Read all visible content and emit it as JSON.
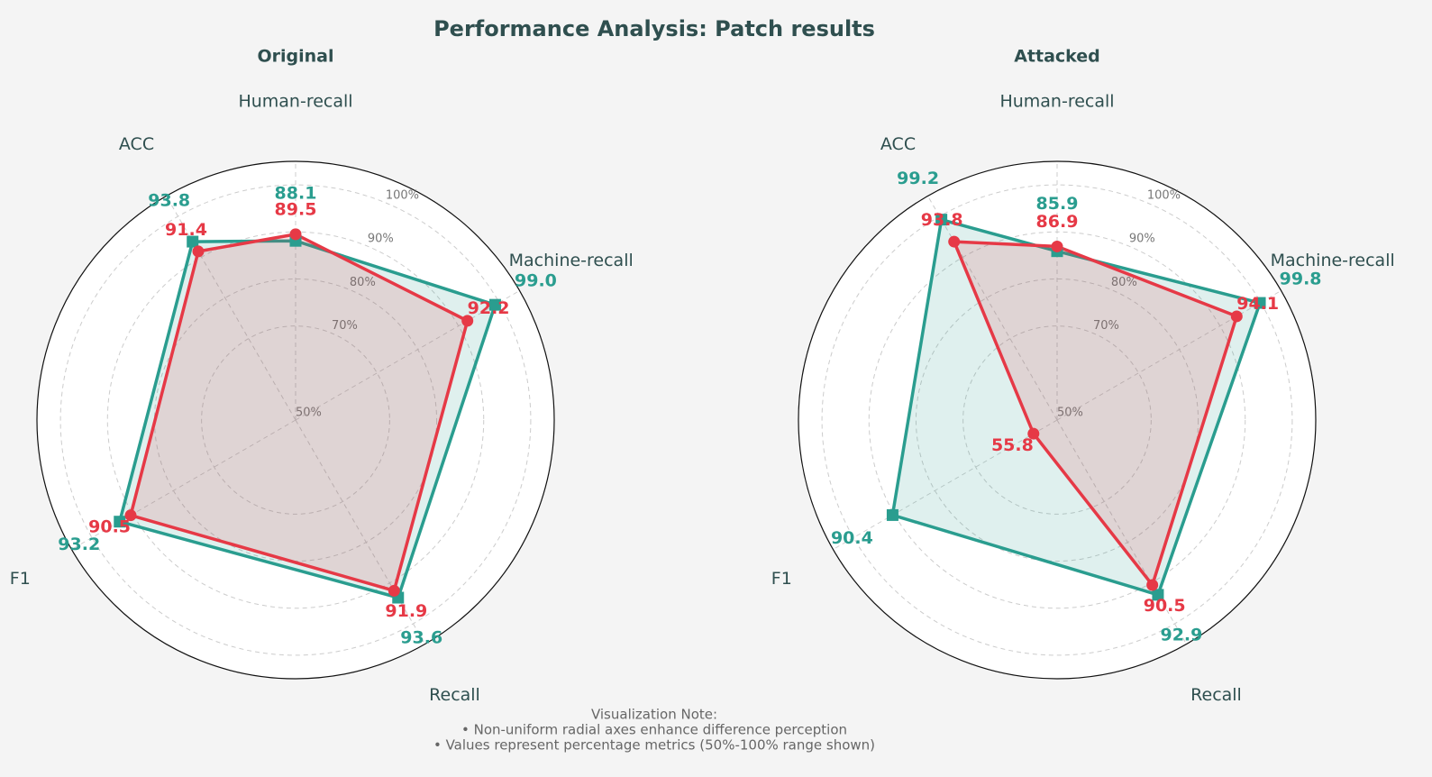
{
  "title": "Performance Analysis: Patch results",
  "note": [
    "Visualization Note:",
    "• Non-uniform radial axes enhance difference perception",
    "• Values represent percentage metrics (50%-100% range shown)"
  ],
  "chart_data": [
    {
      "type": "radar",
      "title": "Original",
      "categories": [
        "Human-recall",
        "Machine-recall",
        "Recall",
        "F1",
        "ACC"
      ],
      "angles": [
        0,
        60,
        150,
        240,
        330
      ],
      "rlim": [
        50,
        105
      ],
      "rticks": [
        {
          "value": 50,
          "label": "50%"
        },
        {
          "value": 70,
          "label": "70%"
        },
        {
          "value": 80,
          "label": "80%"
        },
        {
          "value": 90,
          "label": "90%"
        },
        {
          "value": 100,
          "label": "100%"
        }
      ],
      "grid": true,
      "series": [
        {
          "color": "#2a9d8f",
          "marker": "square",
          "values": [
            88.1,
            99.0,
            93.6,
            93.2,
            93.8
          ],
          "value_labels": [
            "88.1",
            "99.0",
            "93.6",
            "93.2",
            "93.8"
          ]
        },
        {
          "color": "#e63946",
          "marker": "circle",
          "values": [
            89.5,
            92.2,
            91.9,
            90.5,
            91.4
          ],
          "value_labels": [
            "89.5",
            "92.2",
            "91.9",
            "90.5",
            "91.4"
          ]
        }
      ]
    },
    {
      "type": "radar",
      "title": "Attacked",
      "categories": [
        "Human-recall",
        "Machine-recall",
        "Recall",
        "F1",
        "ACC"
      ],
      "angles": [
        0,
        60,
        150,
        240,
        330
      ],
      "rlim": [
        50,
        105
      ],
      "rticks": [
        {
          "value": 50,
          "label": "50%"
        },
        {
          "value": 70,
          "label": "70%"
        },
        {
          "value": 80,
          "label": "80%"
        },
        {
          "value": 90,
          "label": "90%"
        },
        {
          "value": 100,
          "label": "100%"
        }
      ],
      "grid": true,
      "series": [
        {
          "color": "#2a9d8f",
          "marker": "square",
          "values": [
            85.9,
            99.8,
            92.9,
            90.4,
            99.2
          ],
          "value_labels": [
            "85.9",
            "99.8",
            "92.9",
            "90.4",
            "99.2"
          ]
        },
        {
          "color": "#e63946",
          "marker": "circle",
          "values": [
            86.9,
            94.1,
            90.5,
            55.8,
            93.8
          ],
          "value_labels": [
            "86.9",
            "94.1",
            "90.5",
            "55.8",
            "93.8"
          ]
        }
      ]
    }
  ]
}
